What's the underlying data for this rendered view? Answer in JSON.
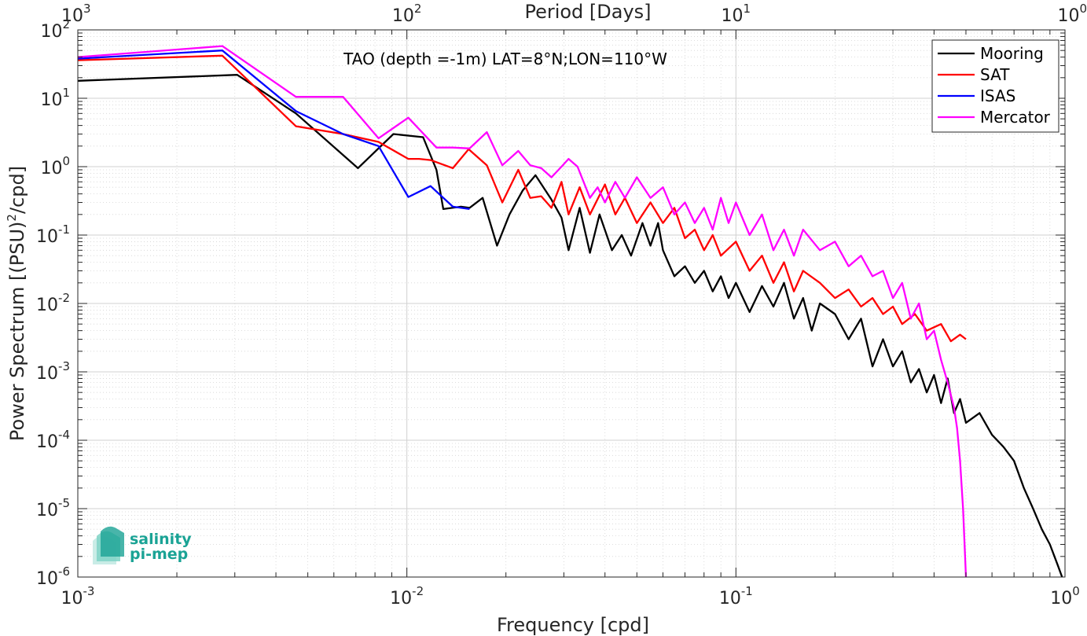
{
  "chart_data": {
    "type": "line",
    "x_scale": "log",
    "y_scale": "log",
    "xlim": [
      0.001,
      1
    ],
    "ylim": [
      1e-06,
      100
    ],
    "xlabel": "Frequency [cpd]",
    "ylabel": "Power Spectrum [(PSU)",
    "ylabel_sup": "2",
    "ylabel_tail": "/cpd]",
    "top_xlabel": "Period [Days]",
    "annotation": "TAO (depth =-1m) LAT=8°N;LON=110°W",
    "x_ticks": [
      {
        "base": "10",
        "exp": "-3"
      },
      {
        "base": "10",
        "exp": "-2"
      },
      {
        "base": "10",
        "exp": "-1"
      },
      {
        "base": "10",
        "exp": "0"
      }
    ],
    "top_ticks": [
      {
        "base": "10",
        "exp": "3"
      },
      {
        "base": "10",
        "exp": "2"
      },
      {
        "base": "10",
        "exp": "1"
      },
      {
        "base": "10",
        "exp": "0"
      }
    ],
    "y_ticks": [
      {
        "base": "10",
        "exp": "2"
      },
      {
        "base": "10",
        "exp": "1"
      },
      {
        "base": "10",
        "exp": "0"
      },
      {
        "base": "10",
        "exp": "-1"
      },
      {
        "base": "10",
        "exp": "-2"
      },
      {
        "base": "10",
        "exp": "-3"
      },
      {
        "base": "10",
        "exp": "-4"
      },
      {
        "base": "10",
        "exp": "-5"
      },
      {
        "base": "10",
        "exp": "-6"
      }
    ],
    "grid": true,
    "legend_position": "top-right",
    "series": [
      {
        "name": "Mooring",
        "color": "#000000",
        "points": [
          [
            0.001,
            18
          ],
          [
            0.00305,
            22
          ],
          [
            0.0046,
            6.0
          ],
          [
            0.0071,
            0.95
          ],
          [
            0.0091,
            3.0
          ],
          [
            0.0112,
            2.7
          ],
          [
            0.0123,
            0.9
          ],
          [
            0.0129,
            0.24
          ],
          [
            0.0146,
            0.26
          ],
          [
            0.0155,
            0.25
          ],
          [
            0.017,
            0.35
          ],
          [
            0.0188,
            0.07
          ],
          [
            0.0205,
            0.2
          ],
          [
            0.0225,
            0.45
          ],
          [
            0.0246,
            0.75
          ],
          [
            0.0275,
            0.33
          ],
          [
            0.0295,
            0.18
          ],
          [
            0.031,
            0.06
          ],
          [
            0.0335,
            0.25
          ],
          [
            0.036,
            0.055
          ],
          [
            0.0385,
            0.2
          ],
          [
            0.042,
            0.06
          ],
          [
            0.045,
            0.1
          ],
          [
            0.048,
            0.05
          ],
          [
            0.052,
            0.15
          ],
          [
            0.055,
            0.07
          ],
          [
            0.058,
            0.15
          ],
          [
            0.06,
            0.06
          ],
          [
            0.065,
            0.025
          ],
          [
            0.07,
            0.035
          ],
          [
            0.075,
            0.02
          ],
          [
            0.08,
            0.03
          ],
          [
            0.085,
            0.015
          ],
          [
            0.09,
            0.025
          ],
          [
            0.095,
            0.012
          ],
          [
            0.1,
            0.02
          ],
          [
            0.11,
            0.0075
          ],
          [
            0.12,
            0.018
          ],
          [
            0.13,
            0.009
          ],
          [
            0.14,
            0.02
          ],
          [
            0.15,
            0.006
          ],
          [
            0.16,
            0.012
          ],
          [
            0.17,
            0.004
          ],
          [
            0.18,
            0.01
          ],
          [
            0.2,
            0.007
          ],
          [
            0.22,
            0.003
          ],
          [
            0.24,
            0.006
          ],
          [
            0.26,
            0.0012
          ],
          [
            0.28,
            0.003
          ],
          [
            0.3,
            0.0012
          ],
          [
            0.32,
            0.002
          ],
          [
            0.34,
            0.0007
          ],
          [
            0.36,
            0.0011
          ],
          [
            0.38,
            0.0005
          ],
          [
            0.4,
            0.0009
          ],
          [
            0.42,
            0.00035
          ],
          [
            0.44,
            0.0008
          ],
          [
            0.46,
            0.00025
          ],
          [
            0.48,
            0.0004
          ],
          [
            0.5,
            0.00018
          ],
          [
            0.55,
            0.00025
          ],
          [
            0.6,
            0.00012
          ],
          [
            0.65,
            8e-05
          ],
          [
            0.7,
            5e-05
          ],
          [
            0.75,
            2e-05
          ],
          [
            0.8,
            1e-05
          ],
          [
            0.85,
            5e-06
          ],
          [
            0.9,
            3e-06
          ],
          [
            0.95,
            1.5e-06
          ],
          [
            0.98,
            1e-06
          ]
        ]
      },
      {
        "name": "SAT",
        "color": "#ff0000",
        "points": [
          [
            0.001,
            36
          ],
          [
            0.00275,
            42
          ],
          [
            0.0046,
            3.9
          ],
          [
            0.0064,
            3.0
          ],
          [
            0.0082,
            2.3
          ],
          [
            0.0101,
            1.3
          ],
          [
            0.0109,
            1.3
          ],
          [
            0.0118,
            1.25
          ],
          [
            0.0138,
            0.95
          ],
          [
            0.0154,
            1.8
          ],
          [
            0.0175,
            1.05
          ],
          [
            0.0195,
            0.3
          ],
          [
            0.0218,
            0.9
          ],
          [
            0.0237,
            0.35
          ],
          [
            0.0256,
            0.37
          ],
          [
            0.0275,
            0.25
          ],
          [
            0.0295,
            0.6
          ],
          [
            0.031,
            0.2
          ],
          [
            0.0335,
            0.5
          ],
          [
            0.036,
            0.2
          ],
          [
            0.04,
            0.55
          ],
          [
            0.043,
            0.2
          ],
          [
            0.046,
            0.35
          ],
          [
            0.05,
            0.15
          ],
          [
            0.055,
            0.3
          ],
          [
            0.06,
            0.15
          ],
          [
            0.065,
            0.25
          ],
          [
            0.07,
            0.09
          ],
          [
            0.075,
            0.12
          ],
          [
            0.08,
            0.06
          ],
          [
            0.085,
            0.1
          ],
          [
            0.09,
            0.05
          ],
          [
            0.1,
            0.08
          ],
          [
            0.11,
            0.03
          ],
          [
            0.12,
            0.05
          ],
          [
            0.13,
            0.02
          ],
          [
            0.14,
            0.04
          ],
          [
            0.15,
            0.015
          ],
          [
            0.16,
            0.03
          ],
          [
            0.18,
            0.02
          ],
          [
            0.2,
            0.012
          ],
          [
            0.22,
            0.016
          ],
          [
            0.24,
            0.009
          ],
          [
            0.26,
            0.012
          ],
          [
            0.28,
            0.007
          ],
          [
            0.3,
            0.009
          ],
          [
            0.32,
            0.005
          ],
          [
            0.35,
            0.007
          ],
          [
            0.38,
            0.004
          ],
          [
            0.42,
            0.005
          ],
          [
            0.45,
            0.0028
          ],
          [
            0.48,
            0.0035
          ],
          [
            0.5,
            0.003
          ]
        ]
      },
      {
        "name": "ISAS",
        "color": "#0000ff",
        "points": [
          [
            0.001,
            38
          ],
          [
            0.00275,
            50
          ],
          [
            0.0046,
            6.5
          ],
          [
            0.0064,
            3.0
          ],
          [
            0.0082,
            2.0
          ],
          [
            0.0101,
            0.36
          ],
          [
            0.0118,
            0.52
          ],
          [
            0.0138,
            0.26
          ],
          [
            0.0155,
            0.24
          ]
        ]
      },
      {
        "name": "Mercator",
        "color": "#ff00ff",
        "points": [
          [
            0.001,
            40
          ],
          [
            0.00275,
            58
          ],
          [
            0.0046,
            10.5
          ],
          [
            0.0064,
            10.5
          ],
          [
            0.0082,
            2.6
          ],
          [
            0.0101,
            5.2
          ],
          [
            0.0123,
            1.9
          ],
          [
            0.0138,
            1.9
          ],
          [
            0.0155,
            1.85
          ],
          [
            0.0175,
            3.2
          ],
          [
            0.0195,
            1.05
          ],
          [
            0.0218,
            1.7
          ],
          [
            0.0237,
            1.05
          ],
          [
            0.0256,
            0.95
          ],
          [
            0.0275,
            0.7
          ],
          [
            0.0295,
            1.0
          ],
          [
            0.031,
            1.3
          ],
          [
            0.033,
            1.0
          ],
          [
            0.036,
            0.35
          ],
          [
            0.038,
            0.5
          ],
          [
            0.04,
            0.3
          ],
          [
            0.043,
            0.6
          ],
          [
            0.046,
            0.35
          ],
          [
            0.05,
            0.7
          ],
          [
            0.055,
            0.35
          ],
          [
            0.06,
            0.5
          ],
          [
            0.065,
            0.2
          ],
          [
            0.07,
            0.3
          ],
          [
            0.075,
            0.15
          ],
          [
            0.08,
            0.25
          ],
          [
            0.085,
            0.12
          ],
          [
            0.09,
            0.35
          ],
          [
            0.095,
            0.15
          ],
          [
            0.1,
            0.3
          ],
          [
            0.11,
            0.1
          ],
          [
            0.12,
            0.2
          ],
          [
            0.13,
            0.06
          ],
          [
            0.14,
            0.12
          ],
          [
            0.15,
            0.05
          ],
          [
            0.16,
            0.12
          ],
          [
            0.18,
            0.06
          ],
          [
            0.2,
            0.08
          ],
          [
            0.22,
            0.035
          ],
          [
            0.24,
            0.05
          ],
          [
            0.26,
            0.025
          ],
          [
            0.28,
            0.03
          ],
          [
            0.3,
            0.012
          ],
          [
            0.32,
            0.02
          ],
          [
            0.34,
            0.006
          ],
          [
            0.36,
            0.01
          ],
          [
            0.38,
            0.003
          ],
          [
            0.4,
            0.004
          ],
          [
            0.42,
            0.0015
          ],
          [
            0.44,
            0.0007
          ],
          [
            0.46,
            0.0003
          ],
          [
            0.47,
            0.00015
          ],
          [
            0.48,
            5e-05
          ],
          [
            0.49,
            1e-05
          ],
          [
            0.5,
            1e-06
          ]
        ]
      }
    ]
  },
  "logo": {
    "line1": "salinity",
    "line2": "pi-mep",
    "color": "#1aa395"
  }
}
